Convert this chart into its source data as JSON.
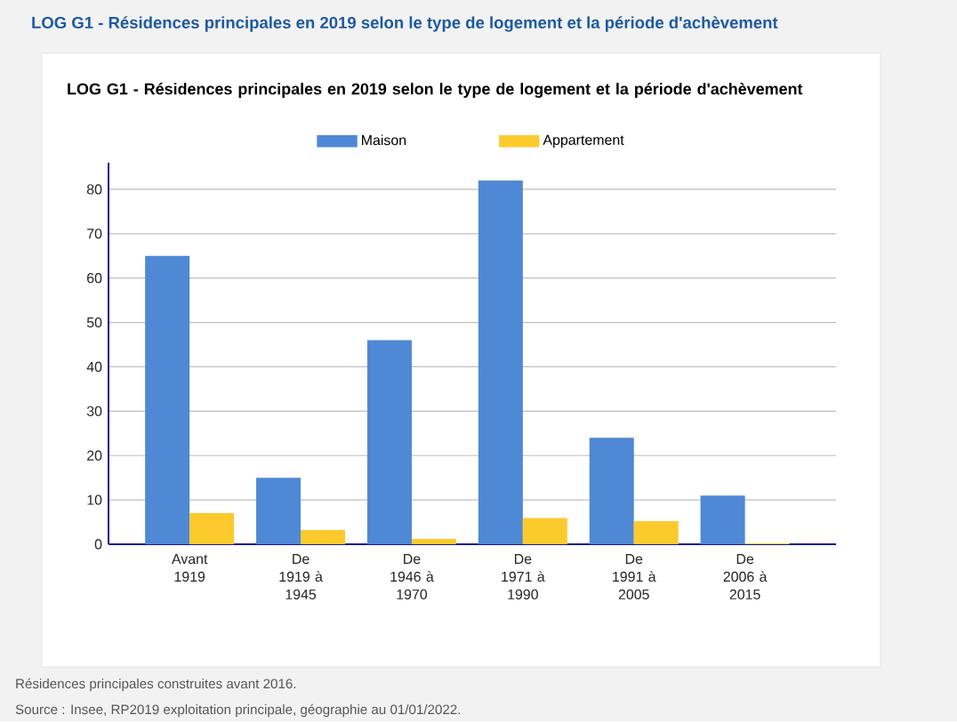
{
  "chart_data": {
    "type": "bar",
    "title": "LOG G1 - Résidences principales en 2019 selon le type de logement et la période d'achèvement",
    "subtitle": "LOG G1 - Résidences principales en 2019 selon le type de logement et la période d'achèvement",
    "categories": [
      "Avant 1919",
      "De 1919 à 1945",
      "De 1946 à 1970",
      "De 1971 à 1990",
      "De 1991 à 2005",
      "De 2006 à 2015"
    ],
    "series": [
      {
        "name": "Maison",
        "color": "#4f88d4",
        "values": [
          65,
          15,
          46,
          82,
          24,
          11
        ]
      },
      {
        "name": "Appartement",
        "color": "#fdca2e",
        "values": [
          7,
          3.2,
          1.2,
          5.9,
          5.2,
          0.2
        ]
      }
    ],
    "ylim": [
      0,
      86
    ],
    "yticks": [
      0,
      10,
      20,
      30,
      40,
      50,
      60,
      70,
      80
    ],
    "grid": "y",
    "legend": "top",
    "annotations": [
      "Résidences principales construites avant 2016.",
      "Source : Insee, RP2019 exploitation principale, géographie au 01/01/2022."
    ]
  }
}
